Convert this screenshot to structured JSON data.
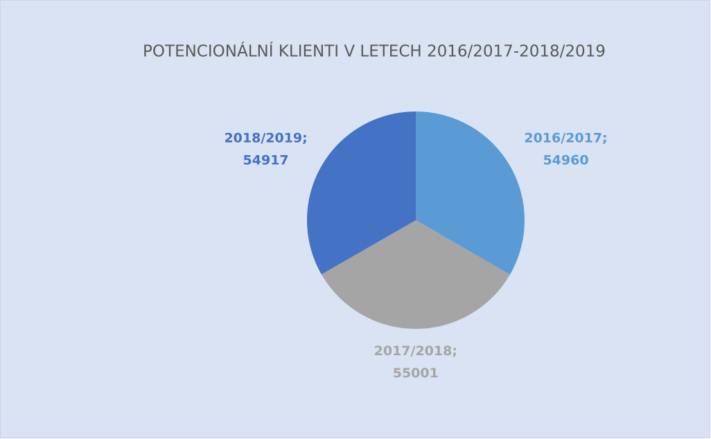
{
  "chart_data": {
    "type": "pie",
    "title": "POTENCIONÁLNÍ KLIENTI V LETECH 2016/2017-2018/2019",
    "categories": [
      "2016/2017",
      "2017/2018",
      "2018/2019"
    ],
    "values": [
      54960,
      55001,
      54917
    ],
    "colors": [
      "#5b9bd5",
      "#a5a5a5",
      "#4472c4"
    ],
    "label_separator": ";"
  }
}
